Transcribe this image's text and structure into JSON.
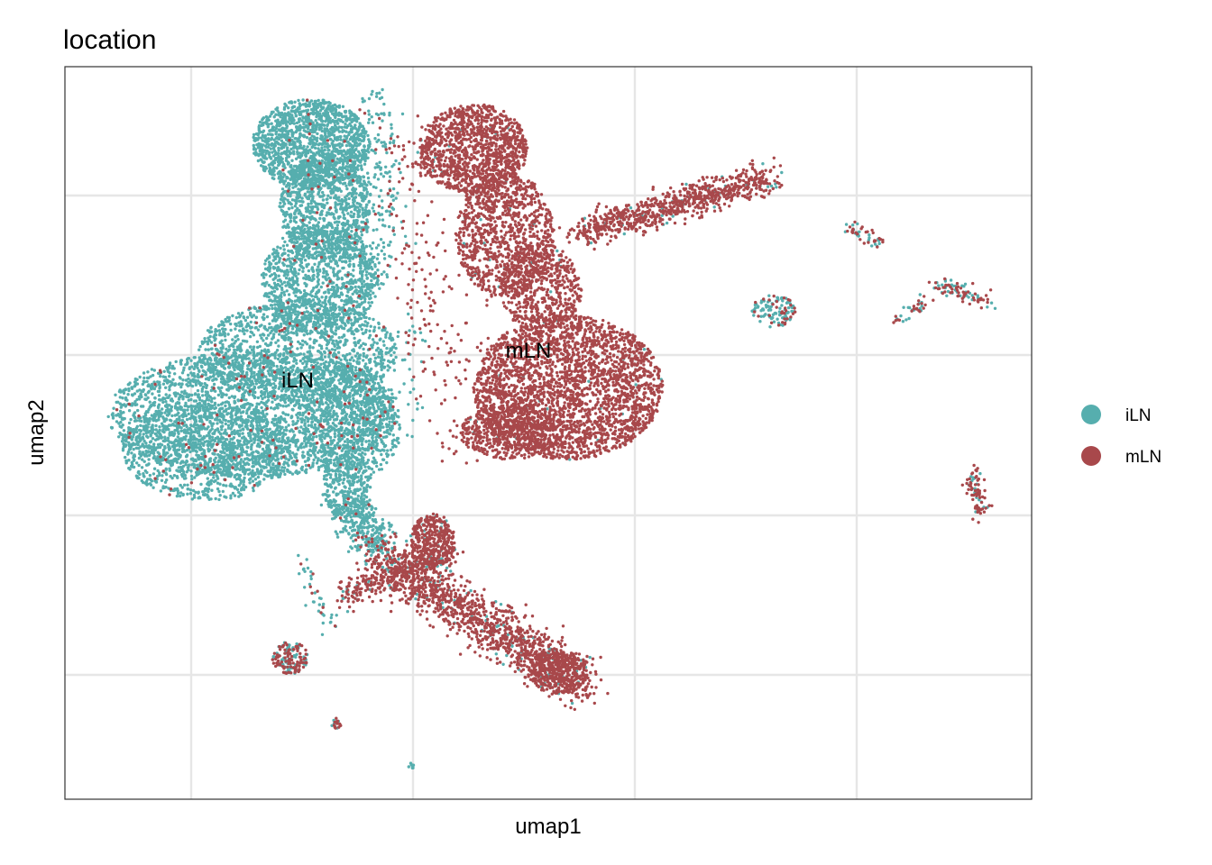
{
  "chart_data": {
    "type": "scatter",
    "title": "location",
    "xlabel": "umap1",
    "ylabel": "umap2",
    "grid": true,
    "x_ticks_labeled": false,
    "y_ticks_labeled": false,
    "legend_placement": "right",
    "series": [
      {
        "name": "iLN",
        "color": "#56AEAE"
      },
      {
        "name": "mLN",
        "color": "#A8484B"
      }
    ],
    "annotations": [
      {
        "text": "iLN"
      },
      {
        "text": "mLN"
      }
    ]
  }
}
